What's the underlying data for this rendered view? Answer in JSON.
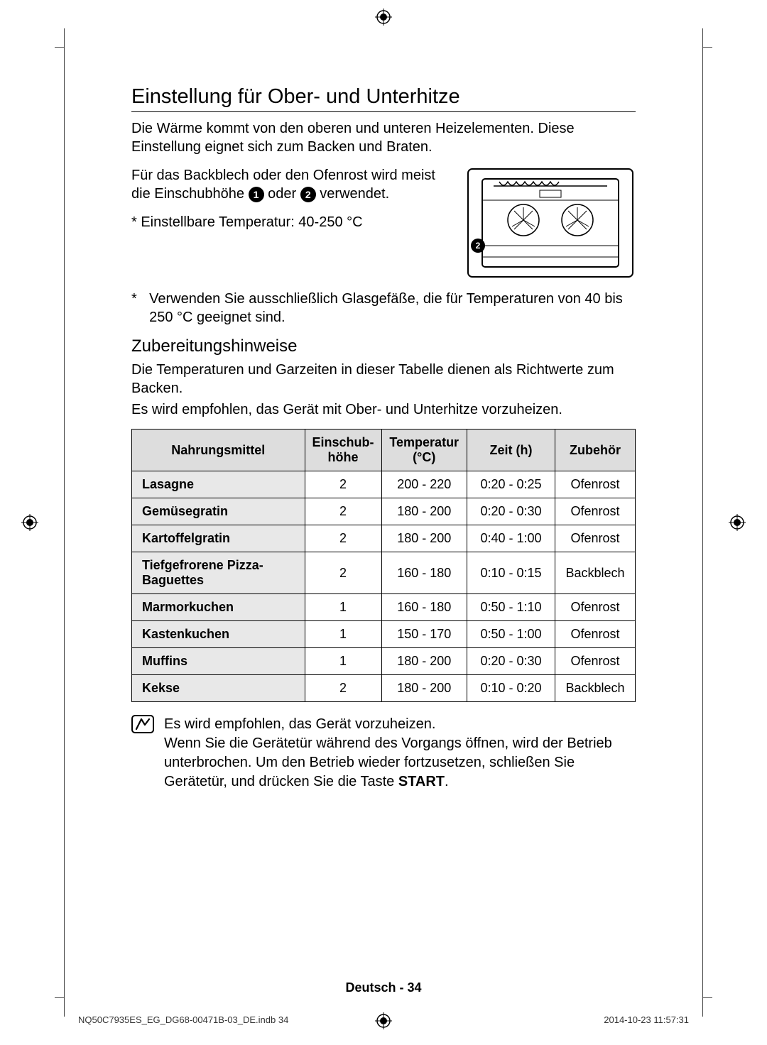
{
  "heading": "Einstellung für Ober- und Unterhitze",
  "intro": "Die Wärme kommt von den oberen und unteren Heizelementen. Diese Einstellung eignet sich zum Backen und Braten.",
  "rack_text_1": "Für das Backblech oder den Ofenrost wird meist die Einschubhöhe ",
  "rack_text_2": " oder ",
  "rack_text_3": " verwendet.",
  "temp_range": "* Einstellbare Temperatur: 40-250 °C",
  "glass_note": "Verwenden Sie ausschließlich Glasgefäße, die für Temperaturen von 40 bis 250 °C geeignet sind.",
  "sub_heading": "Zubereitungshinweise",
  "sub_p1": "Die Temperaturen und Garzeiten in dieser Tabelle dienen als Richtwerte zum Backen.",
  "sub_p2": "Es wird empfohlen, das Gerät mit Ober- und Unterhitze vorzuheizen.",
  "table": {
    "headers": [
      "Nahrungsmittel",
      "Einschub-\nhöhe",
      "Temperatur\n(°C)",
      "Zeit (h)",
      "Zubehör"
    ],
    "rows": [
      [
        "Lasagne",
        "2",
        "200 - 220",
        "0:20 - 0:25",
        "Ofenrost"
      ],
      [
        "Gemüsegratin",
        "2",
        "180 - 200",
        "0:20 - 0:30",
        "Ofenrost"
      ],
      [
        "Kartoffelgratin",
        "2",
        "180 - 200",
        "0:40 - 1:00",
        "Ofenrost"
      ],
      [
        "Tiefgefrorene Pizza-Baguettes",
        "2",
        "160 - 180",
        "0:10 - 0:15",
        "Backblech"
      ],
      [
        "Marmorkuchen",
        "1",
        "160 - 180",
        "0:50 - 1:10",
        "Ofenrost"
      ],
      [
        "Kastenkuchen",
        "1",
        "150 - 170",
        "0:50 - 1:00",
        "Ofenrost"
      ],
      [
        "Muffins",
        "1",
        "180 - 200",
        "0:20 - 0:30",
        "Ofenrost"
      ],
      [
        "Kekse",
        "2",
        "180 - 200",
        "0:10 - 0:20",
        "Backblech"
      ]
    ],
    "col_widths": [
      "35%",
      "14%",
      "17%",
      "18%",
      "16%"
    ]
  },
  "info_note_1": "Es wird empfohlen, das Gerät vorzuheizen.",
  "info_note_2": "Wenn Sie die Gerätetür während des Vorgangs öffnen, wird der Betrieb unterbrochen. Um den Betrieb wieder fortzusetzen, schließen Sie Gerätetür, und drücken Sie die Taste ",
  "info_note_bold": "START",
  "footer_center": "Deutsch - 34",
  "footer_left": "NQ50C7935ES_EG_DG68-00471B-03_DE.indb   34",
  "footer_right": "2014-10-23      11:57:31",
  "circ1": "1",
  "circ2": "2",
  "oven_circ": "2",
  "star": "*",
  "period": "."
}
